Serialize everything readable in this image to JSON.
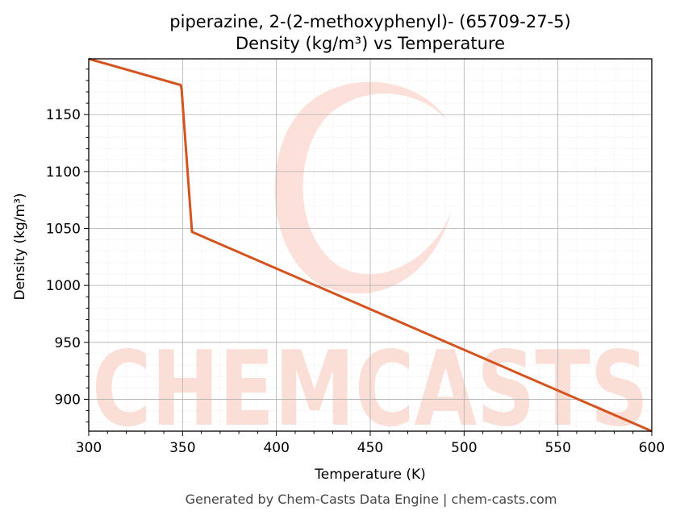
{
  "chart_data": {
    "type": "line",
    "title": "piperazine, 2-(2-methoxyphenyl)- (65709-27-5)",
    "subtitle": "Density (kg/m³) vs Temperature",
    "xlabel": "Temperature (K)",
    "ylabel": "Density (kg/m³)",
    "xlim": [
      300,
      600
    ],
    "ylim": [
      872,
      1199
    ],
    "xticks": [
      300,
      350,
      400,
      450,
      500,
      550,
      600
    ],
    "yticks": [
      900,
      950,
      1000,
      1050,
      1100,
      1150
    ],
    "grid": true,
    "minor_grid": true,
    "series": [
      {
        "x": [
          300,
          349,
          349.5,
          355,
          600
        ],
        "y": [
          1199,
          1176,
          1172,
          1047,
          872
        ]
      }
    ],
    "line_color": "#d4541f"
  },
  "footer": "Generated by Chem-Casts Data Engine | chem-casts.com",
  "watermark": {
    "text": "CHEMCASTS",
    "color": "#fbd6cc"
  }
}
